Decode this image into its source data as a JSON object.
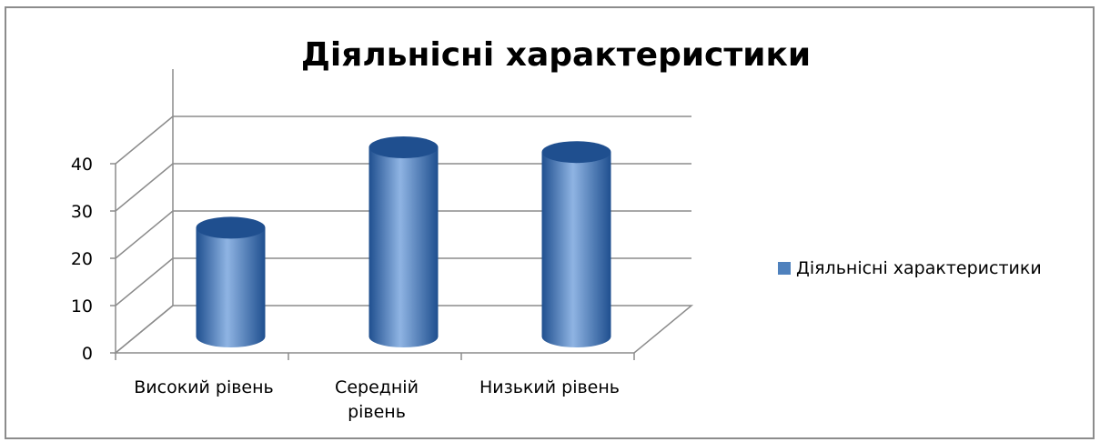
{
  "chart_data": {
    "type": "bar",
    "variant": "3d-cylinder",
    "title": "Діяльнісні характеристики",
    "categories": [
      "Високий рівень",
      "Середній рівень",
      "Низький рівень"
    ],
    "series": [
      {
        "name": "Діяльнісні характеристики",
        "values": [
          23,
          40,
          39
        ]
      }
    ],
    "xlabel": "",
    "ylabel": "",
    "ylim": [
      0,
      40
    ],
    "yticks": [
      "0",
      "10",
      "20",
      "30",
      "40"
    ],
    "grid": true,
    "legend_position": "right"
  },
  "colors": {
    "bar": "#4f81bd",
    "bar_dark": "#1f4f8f",
    "bar_light": "#8fb4e3",
    "grid": "#8c8c8c",
    "frame": "#8c8c8c"
  }
}
